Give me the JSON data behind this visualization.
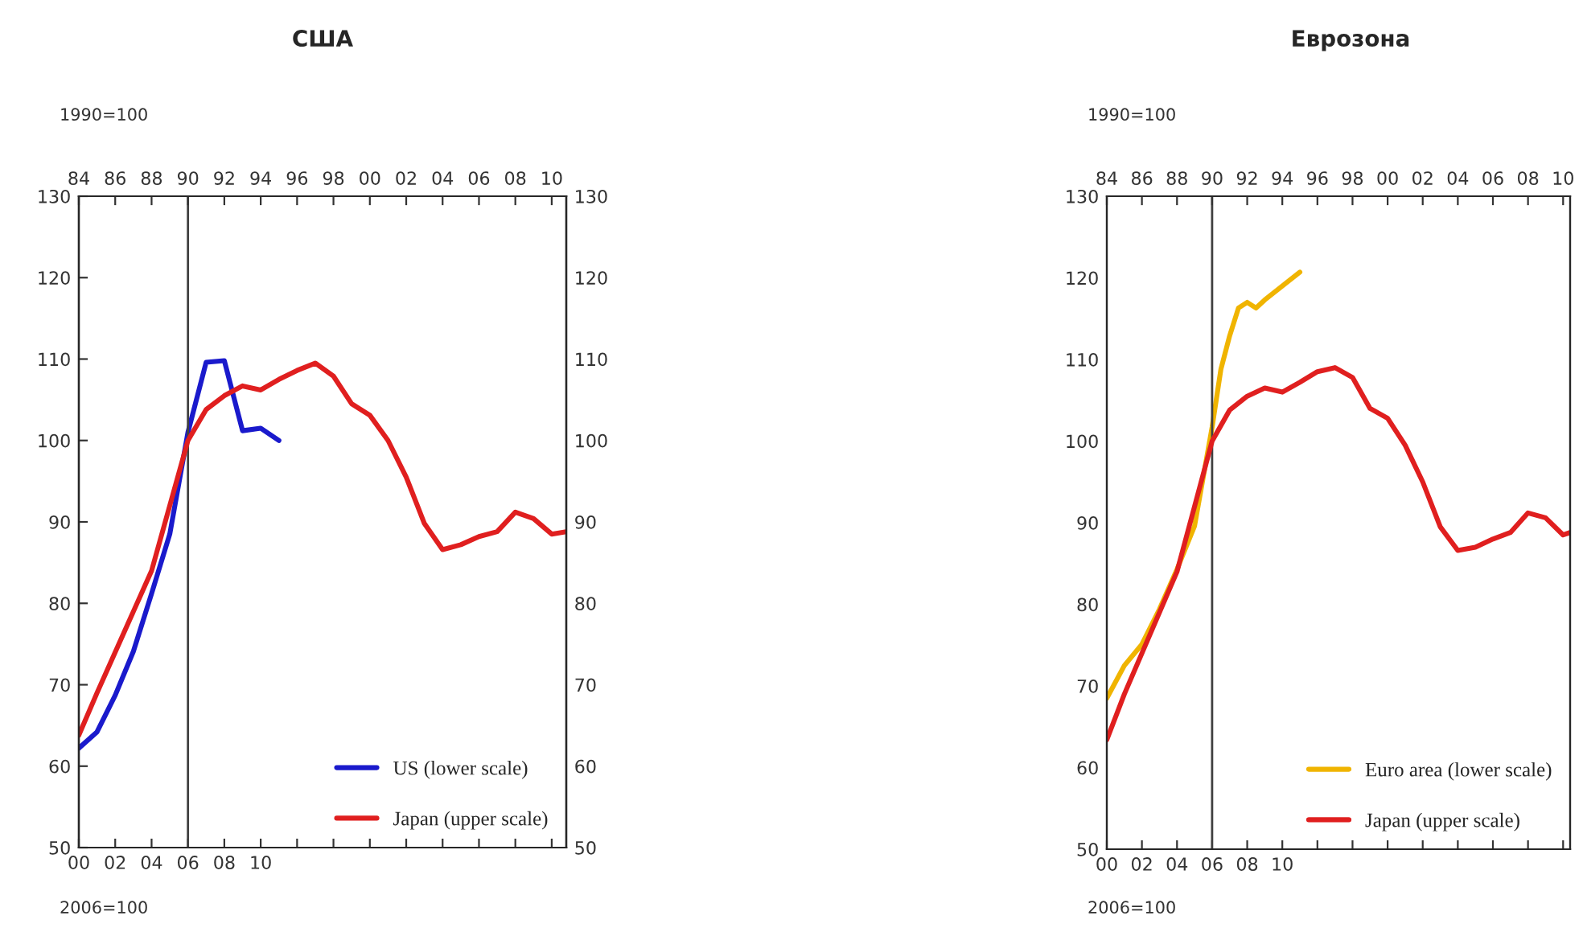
{
  "chart_data": [
    {
      "type": "line",
      "title": "США",
      "annotations": [
        "1990=100",
        "2006=100"
      ],
      "legend": "bottom right",
      "xlim": [
        2000,
        2026.8
      ],
      "xticks": [
        {
          "value": 2000,
          "label": "00"
        },
        {
          "value": 2002,
          "label": "02"
        },
        {
          "value": 2004,
          "label": "04"
        },
        {
          "value": 2006,
          "label": "06"
        },
        {
          "value": 2008,
          "label": "08"
        },
        {
          "value": 2010,
          "label": "10"
        },
        {
          "value": 2012,
          "label": null
        },
        {
          "value": 2014,
          "label": null
        },
        {
          "value": 2016,
          "label": null
        },
        {
          "value": 2018,
          "label": null
        },
        {
          "value": 2020,
          "label": null
        },
        {
          "value": 2022,
          "label": null
        },
        {
          "value": 2024,
          "label": null
        },
        {
          "value": 2026,
          "label": null
        }
      ],
      "x2lim": [
        1984,
        2010.8
      ],
      "x2ticks": [
        {
          "value": 1984,
          "label": "84"
        },
        {
          "value": 1986,
          "label": "86"
        },
        {
          "value": 1988,
          "label": "88"
        },
        {
          "value": 1990,
          "label": "90"
        },
        {
          "value": 1992,
          "label": "92"
        },
        {
          "value": 1994,
          "label": "94"
        },
        {
          "value": 1996,
          "label": "96"
        },
        {
          "value": 1998,
          "label": "98"
        },
        {
          "value": 2000,
          "label": "00"
        },
        {
          "value": 2002,
          "label": "02"
        },
        {
          "value": 2004,
          "label": "04"
        },
        {
          "value": 2006,
          "label": "06"
        },
        {
          "value": 2008,
          "label": "08"
        },
        {
          "value": 2010,
          "label": "10"
        }
      ],
      "ylim": [
        50,
        130
      ],
      "yticks": [
        50,
        60,
        70,
        80,
        90,
        100,
        110,
        120,
        130
      ],
      "y2lim": [
        50,
        130
      ],
      "y2ticks": [
        50,
        60,
        70,
        80,
        90,
        100,
        110,
        120,
        130
      ],
      "ref_lines": [
        {
          "axis": "x",
          "value": 2006,
          "color": "#404040"
        }
      ],
      "series": [
        {
          "name": "US (lower scale)",
          "color": "#1a1acc",
          "x": [
            2000,
            2001,
            2002,
            2003,
            2004,
            2005,
            2006,
            2007,
            2008,
            2009,
            2010,
            2011
          ],
          "values": [
            62.2,
            64.2,
            68.7,
            74.1,
            81.2,
            88.5,
            101,
            109.6,
            109.8,
            101.2,
            101.5,
            100
          ]
        },
        {
          "name": "Japan (upper scale)",
          "color": "#e01f1f",
          "axis": "x2",
          "x": [
            1984,
            1985,
            1986,
            1987,
            1988,
            1989,
            1990,
            1991,
            1992,
            1993,
            1994,
            1995,
            1996,
            1997,
            1998,
            1999,
            2000,
            2001,
            2002,
            2003,
            2004,
            2005,
            2006,
            2007,
            2008,
            2009,
            2010,
            2010.8
          ],
          "values": [
            63.8,
            69,
            74,
            79,
            84,
            92,
            100,
            103.8,
            105.5,
            106.7,
            106.2,
            107.5,
            108.6,
            109.5,
            107.9,
            104.5,
            103.1,
            100,
            95.5,
            89.8,
            86.6,
            87.2,
            88.2,
            88.8,
            91.2,
            90.4,
            88.5,
            88.8
          ]
        }
      ]
    },
    {
      "type": "line",
      "title": "Еврозона",
      "annotations": [
        "1990=100",
        "2006=100"
      ],
      "legend": "bottom right",
      "xlim": [
        2000,
        2026.4
      ],
      "xticks": [
        {
          "value": 2000,
          "label": "00"
        },
        {
          "value": 2002,
          "label": "02"
        },
        {
          "value": 2004,
          "label": "04"
        },
        {
          "value": 2006,
          "label": "06"
        },
        {
          "value": 2008,
          "label": "08"
        },
        {
          "value": 2010,
          "label": "10"
        },
        {
          "value": 2012,
          "label": null
        },
        {
          "value": 2014,
          "label": null
        },
        {
          "value": 2016,
          "label": null
        },
        {
          "value": 2018,
          "label": null
        },
        {
          "value": 2020,
          "label": null
        },
        {
          "value": 2022,
          "label": null
        },
        {
          "value": 2024,
          "label": null
        },
        {
          "value": 2026,
          "label": null
        }
      ],
      "x2lim": [
        1984,
        2010.4
      ],
      "x2ticks": [
        {
          "value": 1984,
          "label": "84"
        },
        {
          "value": 1986,
          "label": "86"
        },
        {
          "value": 1988,
          "label": "88"
        },
        {
          "value": 1990,
          "label": "90"
        },
        {
          "value": 1992,
          "label": "92"
        },
        {
          "value": 1994,
          "label": "94"
        },
        {
          "value": 1996,
          "label": "96"
        },
        {
          "value": 1998,
          "label": "98"
        },
        {
          "value": 2000,
          "label": "00"
        },
        {
          "value": 2002,
          "label": "02"
        },
        {
          "value": 2004,
          "label": "04"
        },
        {
          "value": 2006,
          "label": "06"
        },
        {
          "value": 2008,
          "label": "08"
        },
        {
          "value": 2010,
          "label": "10"
        }
      ],
      "ylim": [
        50,
        130
      ],
      "yticks": [
        50,
        60,
        70,
        80,
        90,
        100,
        110,
        120,
        130
      ],
      "ref_lines": [
        {
          "axis": "x",
          "value": 2006,
          "color": "#404040"
        }
      ],
      "series": [
        {
          "name": "Euro area (lower scale)",
          "color": "#f0b400",
          "x": [
            2000,
            2001,
            2002,
            2003,
            2004,
            2005,
            2006,
            2006.5,
            2007,
            2007.5,
            2008,
            2008.5,
            2009,
            2010,
            2011
          ],
          "values": [
            68.5,
            72.5,
            75.1,
            79.4,
            84.3,
            89.6,
            101.7,
            108.8,
            112.9,
            116.3,
            117,
            116.3,
            117.3,
            119,
            120.7
          ]
        },
        {
          "name": "Japan (upper scale)",
          "color": "#e01f1f",
          "axis": "x2",
          "x": [
            1984,
            1985,
            1986,
            1987,
            1988,
            1989,
            1990,
            1991,
            1992,
            1993,
            1994,
            1995,
            1996,
            1997,
            1998,
            1999,
            2000,
            2001,
            2002,
            2003,
            2004,
            2005,
            2006,
            2007,
            2008,
            2009,
            2010,
            2010.4
          ],
          "values": [
            63.4,
            69,
            74,
            79,
            84,
            92,
            100,
            103.8,
            105.5,
            106.5,
            106,
            107.2,
            108.5,
            109,
            107.8,
            104,
            102.8,
            99.5,
            95,
            89.5,
            86.6,
            87,
            88,
            88.8,
            91.2,
            90.6,
            88.5,
            88.8
          ]
        }
      ]
    }
  ]
}
